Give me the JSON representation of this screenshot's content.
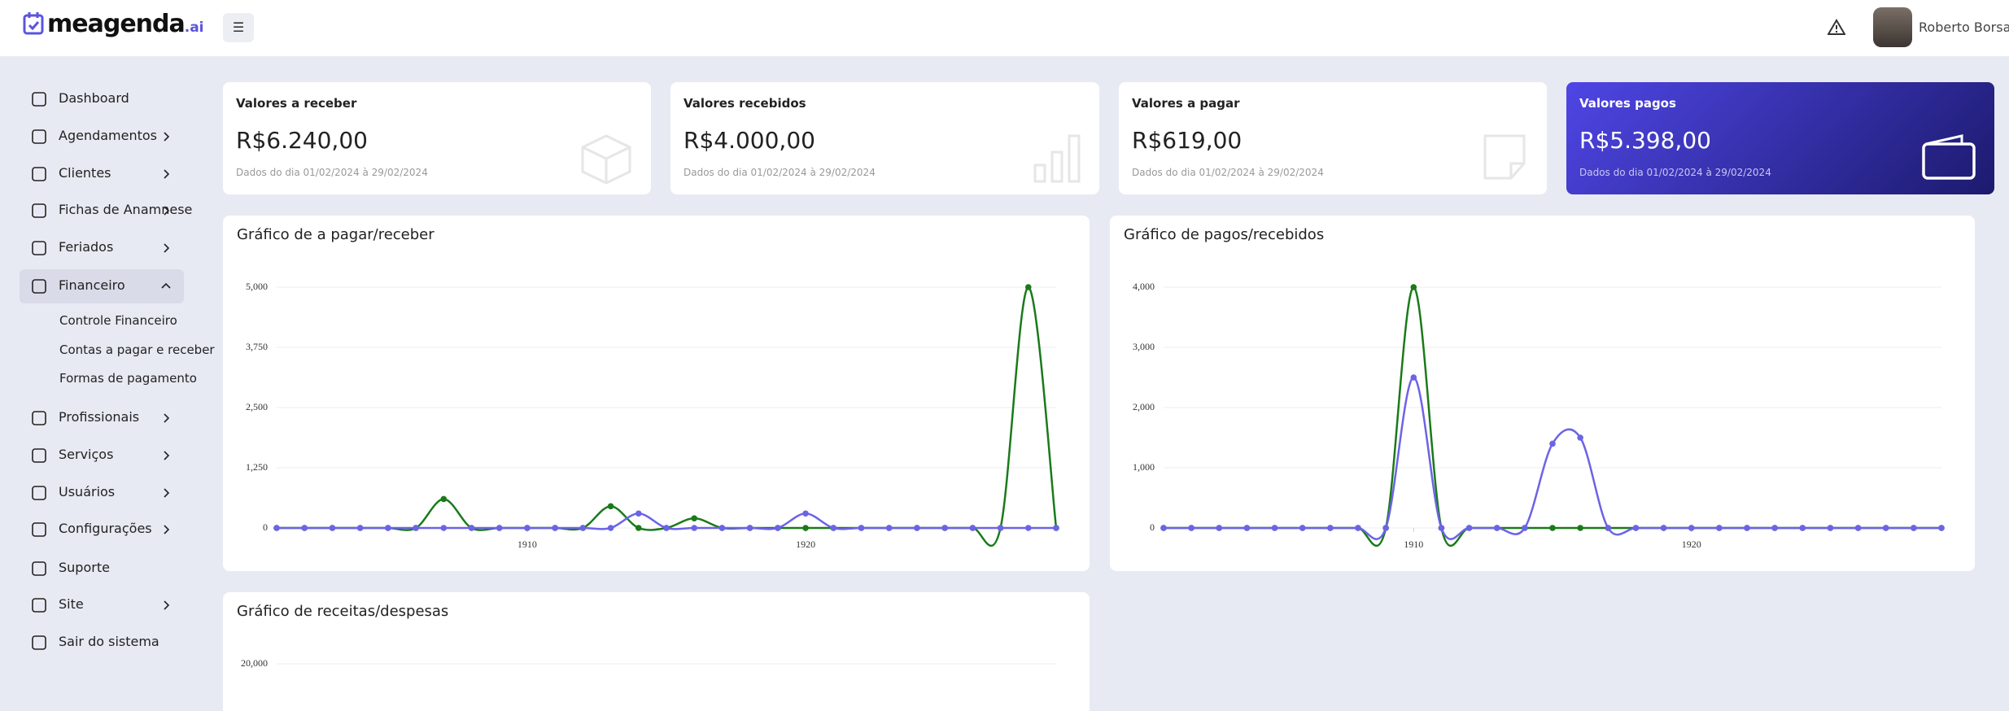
{
  "header": {
    "logo": "meagenda",
    "logo_suffix": ".ai",
    "user": "Roberto Borsatti"
  },
  "sidebar": {
    "items": [
      "Dashboard",
      "Agendamentos",
      "Clientes",
      "Fichas de Anamnese",
      "Feriados",
      "Financeiro",
      "Profissionais",
      "Serviços",
      "Usuários",
      "Configurações",
      "Suporte",
      "Site",
      "Sair do sistema"
    ],
    "submenu": [
      "Controle Financeiro",
      "Contas a pagar e receber",
      "Formas de pagamento"
    ]
  },
  "cards": [
    {
      "title": "Valores a receber",
      "value": "R$6.240,00",
      "period": "Dados do dia 01/02/2024 à 29/02/2024"
    },
    {
      "title": "Valores recebidos",
      "value": "R$4.000,00",
      "period": "Dados do dia 01/02/2024 à 29/02/2024"
    },
    {
      "title": "Valores a pagar",
      "value": "R$619,00",
      "period": "Dados do dia 01/02/2024 à 29/02/2024"
    },
    {
      "title": "Valores pagos",
      "value": "R$5.398,00",
      "period": "Dados do dia 01/02/2024 à 29/02/2024"
    }
  ],
  "charts": [
    {
      "type": "line",
      "title": "Gráfico de a pagar/receber",
      "x": [
        1901,
        1902,
        1903,
        1904,
        1905,
        1906,
        1907,
        1908,
        1909,
        1910,
        1911,
        1912,
        1913,
        1914,
        1915,
        1916,
        1917,
        1918,
        1919,
        1920,
        1921,
        1922,
        1923,
        1924,
        1925,
        1926,
        1927,
        1928,
        1929
      ],
      "xlim": [
        1901,
        1929
      ],
      "xticks": [
        1910,
        1920
      ],
      "ylim": [
        0,
        5000
      ],
      "yticks": [
        0,
        {
          "value": 1250,
          "label": "1,250"
        },
        {
          "value": 2500,
          "label": "2,500"
        },
        {
          "value": 3750,
          "label": "3,750"
        },
        {
          "value": 5000,
          "label": "5,000"
        }
      ],
      "series": [
        {
          "color": "#1a7a1a",
          "values": [
            0,
            0,
            0,
            0,
            0,
            0,
            600,
            0,
            0,
            0,
            0,
            0,
            450,
            0,
            0,
            200,
            0,
            0,
            0,
            0,
            0,
            0,
            0,
            0,
            0,
            0,
            0,
            5000,
            0
          ]
        },
        {
          "color": "#6c63e6",
          "values": [
            0,
            0,
            0,
            0,
            0,
            0,
            0,
            0,
            0,
            0,
            0,
            0,
            0,
            300,
            0,
            0,
            0,
            0,
            0,
            300,
            0,
            0,
            0,
            0,
            0,
            0,
            0,
            0,
            0
          ]
        }
      ]
    },
    {
      "type": "line",
      "title": "Gráfico de pagos/recebidos",
      "x": [
        1901,
        1902,
        1903,
        1904,
        1905,
        1906,
        1907,
        1908,
        1909,
        1910,
        1911,
        1912,
        1913,
        1914,
        1915,
        1916,
        1917,
        1918,
        1919,
        1920,
        1921,
        1922,
        1923,
        1924,
        1925,
        1926,
        1927,
        1928,
        1929
      ],
      "xlim": [
        1901,
        1929
      ],
      "xticks": [
        1910,
        1920
      ],
      "ylim": [
        0,
        4000
      ],
      "yticks": [
        0,
        {
          "value": 1000,
          "label": "1,000"
        },
        {
          "value": 2000,
          "label": "2,000"
        },
        {
          "value": 3000,
          "label": "3,000"
        },
        {
          "value": 4000,
          "label": "4,000"
        }
      ],
      "series": [
        {
          "color": "#1a7a1a",
          "values": [
            0,
            0,
            0,
            0,
            0,
            0,
            0,
            0,
            0,
            4000,
            0,
            0,
            0,
            0,
            0,
            0,
            0,
            0,
            0,
            0,
            0,
            0,
            0,
            0,
            0,
            0,
            0,
            0,
            0
          ]
        },
        {
          "color": "#6c63e6",
          "values": [
            0,
            0,
            0,
            0,
            0,
            0,
            0,
            0,
            0,
            2500,
            0,
            0,
            0,
            0,
            1400,
            1500,
            0,
            0,
            0,
            0,
            0,
            0,
            0,
            0,
            0,
            0,
            0,
            0,
            0
          ]
        }
      ]
    },
    {
      "type": "line",
      "title": "Gráfico de receitas/despesas",
      "yticks": [
        {
          "value": 20000,
          "label": "20,000"
        }
      ]
    }
  ]
}
